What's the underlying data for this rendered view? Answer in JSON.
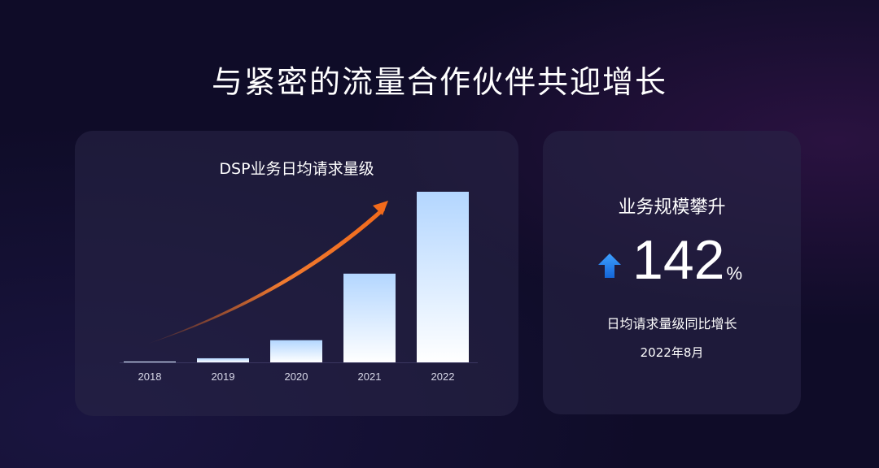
{
  "title": "与紧密的流量合作伙伴共迎增长",
  "chart_data": {
    "type": "bar",
    "title": "DSP业务日均请求量级",
    "categories": [
      "2018",
      "2019",
      "2020",
      "2021",
      "2022"
    ],
    "values": [
      0.5,
      2.4,
      13,
      52,
      100
    ],
    "xlabel": "",
    "ylabel": "",
    "y_axis_shown": false,
    "grid": false,
    "bar_color_gradient": [
      "#b3d6ff",
      "#ffffff"
    ],
    "trend_arrow_color": "#f26a1b"
  },
  "stat_card": {
    "title": "业务规模攀升",
    "value": "142",
    "unit": "%",
    "direction_icon": "arrow-up-icon",
    "icon_color": "#1e7cf0",
    "description": "日均请求量级同比增长",
    "date": "2022年8月"
  }
}
